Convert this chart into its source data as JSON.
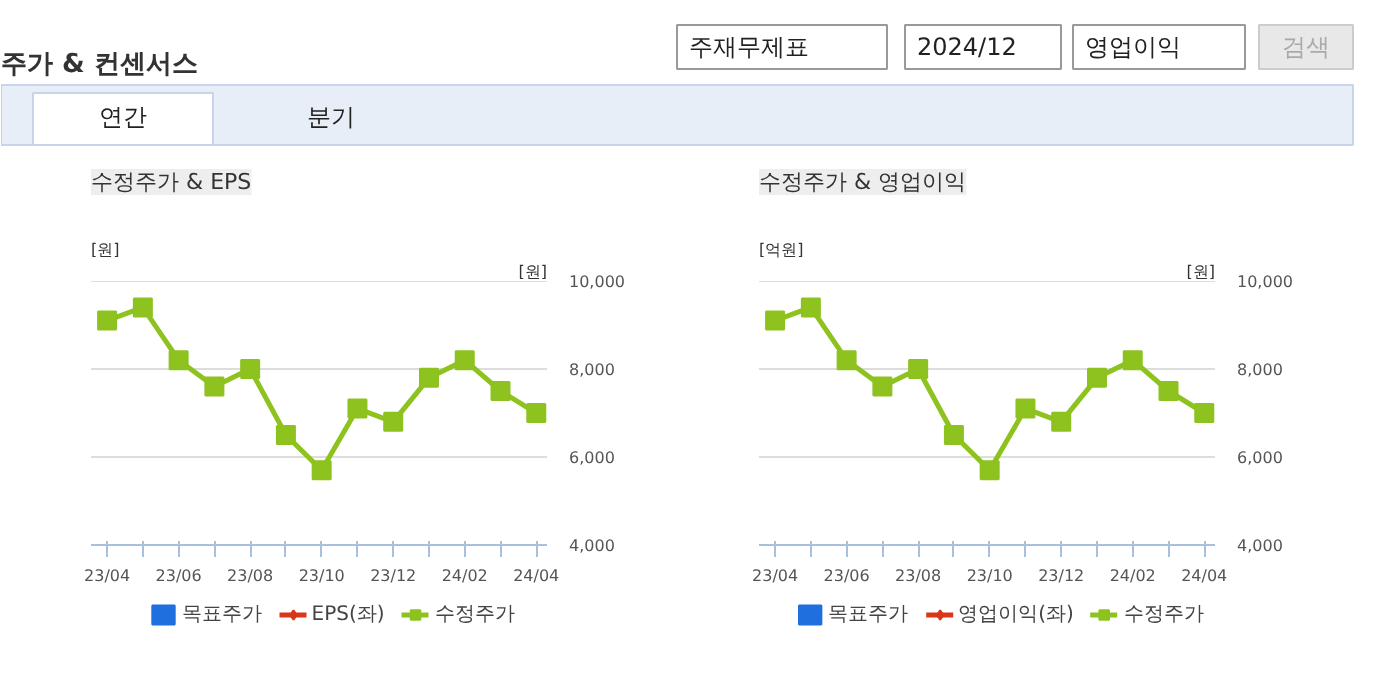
{
  "chart_data": [
    {
      "type": "other",
      "title": "주가 & 컨센서스",
      "annotations": [
        "주재무제표",
        "2024/12",
        "영업이익",
        "검색",
        "연간",
        "분기"
      ]
    },
    {
      "type": "line",
      "title": "수정주가 & EPS",
      "ylabel": "[원]",
      "y2label": "[원]",
      "categories": [
        "23/04",
        null,
        "23/06",
        null,
        "23/08",
        null,
        "23/10",
        null,
        "23/12",
        null,
        "24/02",
        null,
        "24/04"
      ],
      "series": [
        {
          "name": "목표주가",
          "type": "bar",
          "color": "#1f6fde",
          "values": [
            null,
            null,
            null,
            null,
            null,
            null,
            null,
            null,
            null,
            null,
            null,
            null,
            null
          ]
        },
        {
          "name": "EPS(좌)",
          "type": "line",
          "marker": "diamond",
          "color": "#d9361a",
          "values": [
            null,
            null,
            null,
            null,
            null,
            null,
            null,
            null,
            null,
            null,
            null,
            null,
            null
          ]
        },
        {
          "name": "수정주가",
          "type": "line",
          "marker": "square",
          "axis": "y2",
          "color": "#8dc21f",
          "values": [
            9100,
            9400,
            8200,
            7600,
            8000,
            6500,
            5700,
            7100,
            6800,
            7800,
            8200,
            7500,
            7000
          ]
        }
      ],
      "y2lim": [
        4000,
        10000
      ],
      "y2ticks": [
        {
          "value": 4000,
          "label": "4,000"
        },
        {
          "value": 6000,
          "label": "6,000"
        },
        {
          "value": 8000,
          "label": "8,000"
        },
        {
          "value": 10000,
          "label": "10,000"
        }
      ],
      "grid": "y2",
      "legend": "bottom"
    },
    {
      "type": "line",
      "title": "수정주가 & 영업이익",
      "ylabel": "[억원]",
      "y2label": "[원]",
      "categories": [
        "23/04",
        null,
        "23/06",
        null,
        "23/08",
        null,
        "23/10",
        null,
        "23/12",
        null,
        "24/02",
        null,
        "24/04"
      ],
      "series": [
        {
          "name": "목표주가",
          "type": "bar",
          "color": "#1f6fde",
          "values": [
            null,
            null,
            null,
            null,
            null,
            null,
            null,
            null,
            null,
            null,
            null,
            null,
            null
          ]
        },
        {
          "name": "영업이익(좌)",
          "type": "line",
          "marker": "diamond",
          "color": "#d9361a",
          "values": [
            null,
            null,
            null,
            null,
            null,
            null,
            null,
            null,
            null,
            null,
            null,
            null,
            null
          ]
        },
        {
          "name": "수정주가",
          "type": "line",
          "marker": "square",
          "axis": "y2",
          "color": "#8dc21f",
          "values": [
            9100,
            9400,
            8200,
            7600,
            8000,
            6500,
            5700,
            7100,
            6800,
            7800,
            8200,
            7500,
            7000
          ]
        }
      ],
      "y2lim": [
        4000,
        10000
      ],
      "y2ticks": [
        {
          "value": 4000,
          "label": "4,000"
        },
        {
          "value": 6000,
          "label": "6,000"
        },
        {
          "value": 8000,
          "label": "8,000"
        },
        {
          "value": 10000,
          "label": "10,000"
        }
      ],
      "grid": "y2",
      "legend": "bottom"
    }
  ]
}
